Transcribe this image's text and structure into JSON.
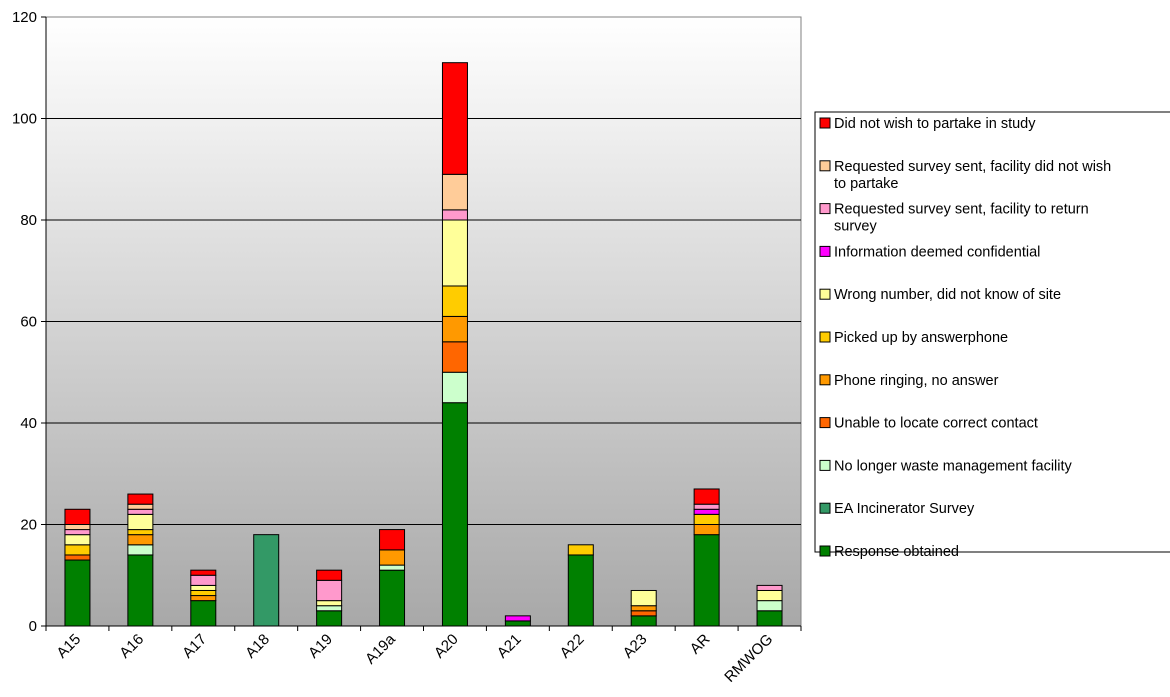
{
  "chart_data": {
    "type": "bar",
    "stacked": true,
    "categories": [
      "A15",
      "A16",
      "A17",
      "A18",
      "A19",
      "A19a",
      "A20",
      "A21",
      "A22",
      "A23",
      "AR",
      "RMWOG"
    ],
    "ylim": [
      0,
      120
    ],
    "yticks": [
      0,
      20,
      40,
      60,
      80,
      100,
      120
    ],
    "grid": true,
    "legend_position": "right",
    "series": [
      {
        "name": "Response obtained",
        "color": "#008000",
        "values": [
          13,
          14,
          5,
          0,
          3,
          11,
          44,
          1,
          14,
          2,
          18,
          3
        ]
      },
      {
        "name": "EA Incinerator Survey",
        "color": "#339966",
        "values": [
          0,
          0,
          0,
          18,
          0,
          0,
          0,
          0,
          0,
          0,
          0,
          0
        ]
      },
      {
        "name": "No longer waste management facility",
        "color": "#CCFFCC",
        "values": [
          0,
          2,
          0,
          0,
          1,
          1,
          6,
          0,
          0,
          0,
          0,
          2
        ]
      },
      {
        "name": "Unable to locate correct contact",
        "color": "#FF6600",
        "values": [
          1,
          0,
          0,
          0,
          0,
          0,
          6,
          0,
          0,
          1,
          0,
          0
        ]
      },
      {
        "name": "Phone ringing, no answer",
        "color": "#FF9900",
        "values": [
          0,
          2,
          1,
          0,
          0,
          3,
          5,
          0,
          0,
          1,
          2,
          0
        ]
      },
      {
        "name": "Picked up by answerphone",
        "color": "#FFCC00",
        "values": [
          2,
          1,
          1,
          0,
          0,
          0,
          6,
          0,
          2,
          0,
          2,
          0
        ]
      },
      {
        "name": "Wrong number, did not know of site",
        "color": "#FFFF99",
        "values": [
          2,
          3,
          1,
          0,
          1,
          0,
          13,
          0,
          0,
          3,
          0,
          2
        ]
      },
      {
        "name": "Information deemed confidential",
        "color": "#FF00FF",
        "values": [
          0,
          0,
          0,
          0,
          0,
          0,
          0,
          1,
          0,
          0,
          1,
          0
        ]
      },
      {
        "name": "Requested survey sent, facility to return survey",
        "color": "#FF99CC",
        "values": [
          1,
          1,
          2,
          0,
          4,
          0,
          2,
          0,
          0,
          0,
          1,
          1
        ]
      },
      {
        "name": "Requested survey sent, facility did not wish to partake",
        "color": "#FFCC99",
        "values": [
          1,
          1,
          0,
          0,
          0,
          0,
          7,
          0,
          0,
          0,
          0,
          0
        ]
      },
      {
        "name": "Did not wish to partake in study",
        "color": "#FF0000",
        "values": [
          3,
          2,
          1,
          0,
          2,
          4,
          22,
          0,
          0,
          0,
          3,
          0
        ]
      }
    ]
  }
}
